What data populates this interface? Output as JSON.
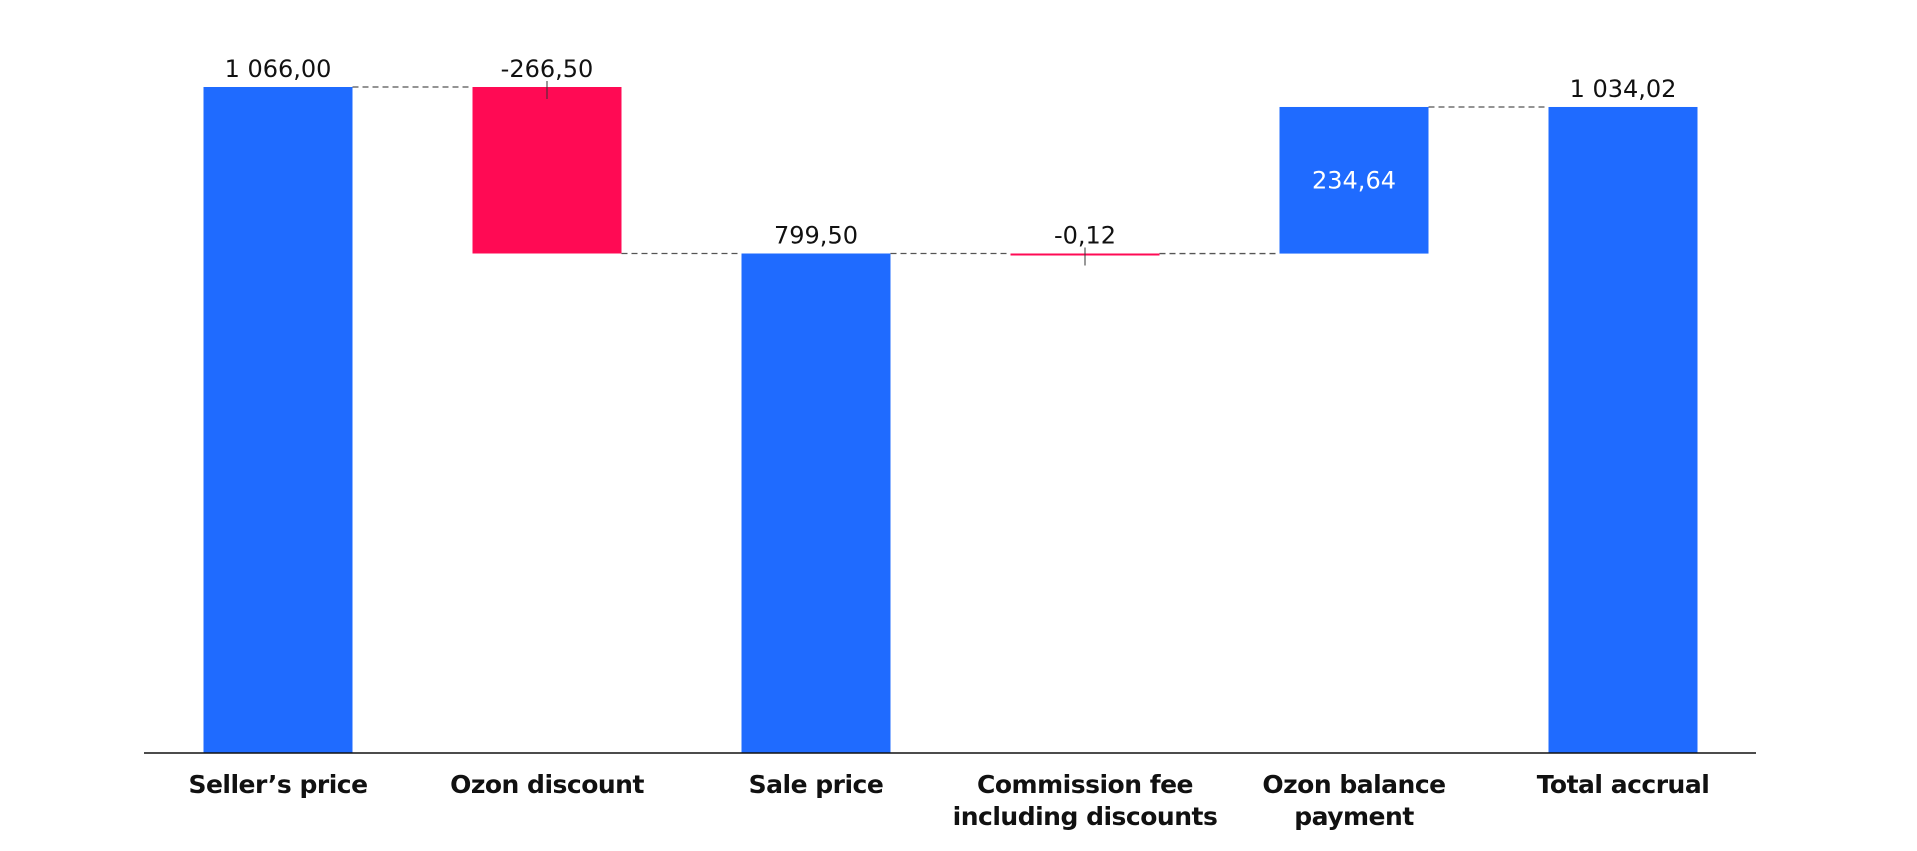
{
  "chart_data": {
    "type": "waterfall",
    "categories": [
      "Seller’s price",
      "Ozon discount",
      "Sale price",
      "Commission fee\nincluding discounts",
      "Ozon balance\npayment",
      "Total accrual"
    ],
    "values": [
      1066.0,
      -266.5,
      799.5,
      -0.12,
      234.64,
      1034.02
    ],
    "value_labels": [
      "1 066,00",
      "-266,50",
      "799,50",
      "-0,12",
      "234,64",
      "1 034,02"
    ],
    "measure": [
      "absolute",
      "relative",
      "absolute",
      "relative",
      "relative",
      "absolute"
    ],
    "colors": {
      "absolute": "#1f6bff",
      "increase": "#1f6bff",
      "decrease": "#ff0a54"
    }
  }
}
